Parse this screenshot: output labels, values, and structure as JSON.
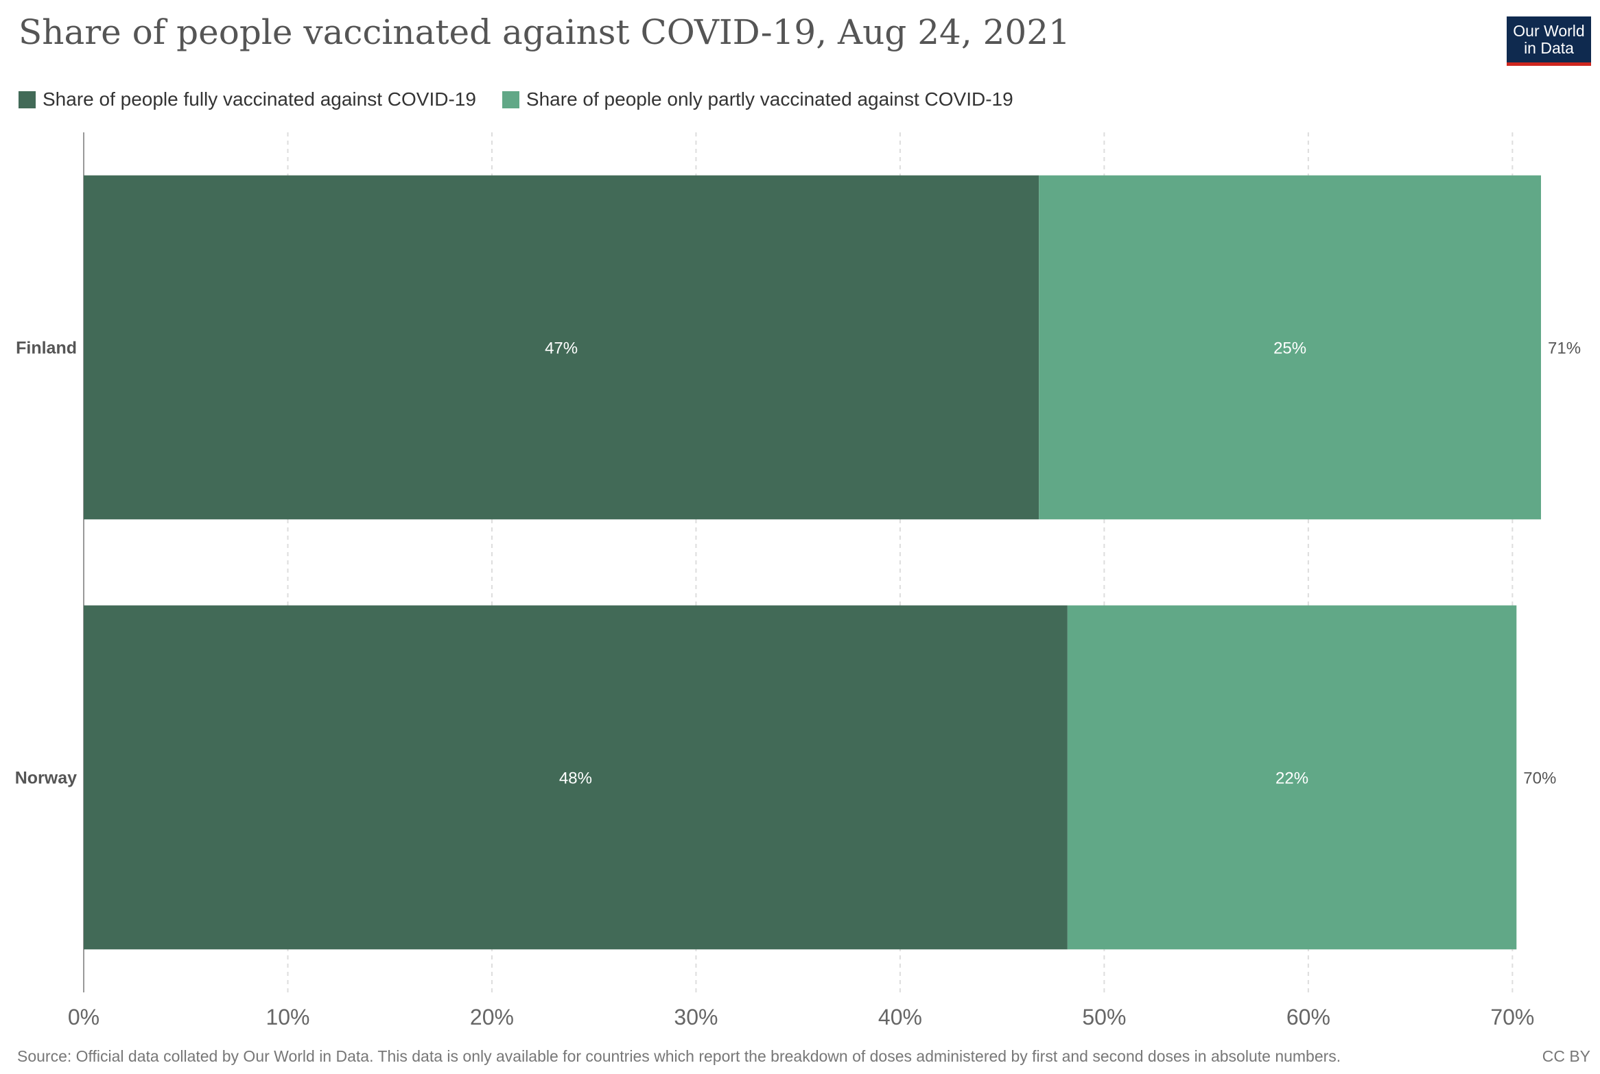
{
  "header": {
    "title": "Share of people vaccinated against COVID-19, Aug 24, 2021",
    "logo_line1": "Our World",
    "logo_line2": "in Data"
  },
  "legend": [
    {
      "label": "Share of people fully vaccinated against COVID-19",
      "color": "#426a57"
    },
    {
      "label": "Share of people only partly vaccinated against COVID-19",
      "color": "#61a887"
    }
  ],
  "footer": {
    "source": "Source: Official data collated by Our World in Data. This data is only available for countries which report the breakdown of doses administered by first and second doses in absolute numbers.",
    "license": "CC BY"
  },
  "chart_data": {
    "type": "bar",
    "orientation": "horizontal",
    "stacked": true,
    "categories": [
      "Finland",
      "Norway"
    ],
    "series": [
      {
        "name": "Share of people fully vaccinated against COVID-19",
        "values": [
          46.8,
          48.2
        ],
        "labels": [
          "47%",
          "48%"
        ],
        "color": "#426a57"
      },
      {
        "name": "Share of people only partly vaccinated against COVID-19",
        "values": [
          24.6,
          22.0
        ],
        "labels": [
          "25%",
          "22%"
        ],
        "color": "#61a887"
      }
    ],
    "totals": [
      71.4,
      70.2
    ],
    "total_labels": [
      "71%",
      "70%"
    ],
    "xlim": [
      0,
      71.4
    ],
    "xticks": [
      0,
      10,
      20,
      30,
      40,
      50,
      60,
      70
    ],
    "xtick_labels": [
      "0%",
      "10%",
      "20%",
      "30%",
      "40%",
      "50%",
      "60%",
      "70%"
    ],
    "grid": true,
    "legend_position": "top-left"
  }
}
